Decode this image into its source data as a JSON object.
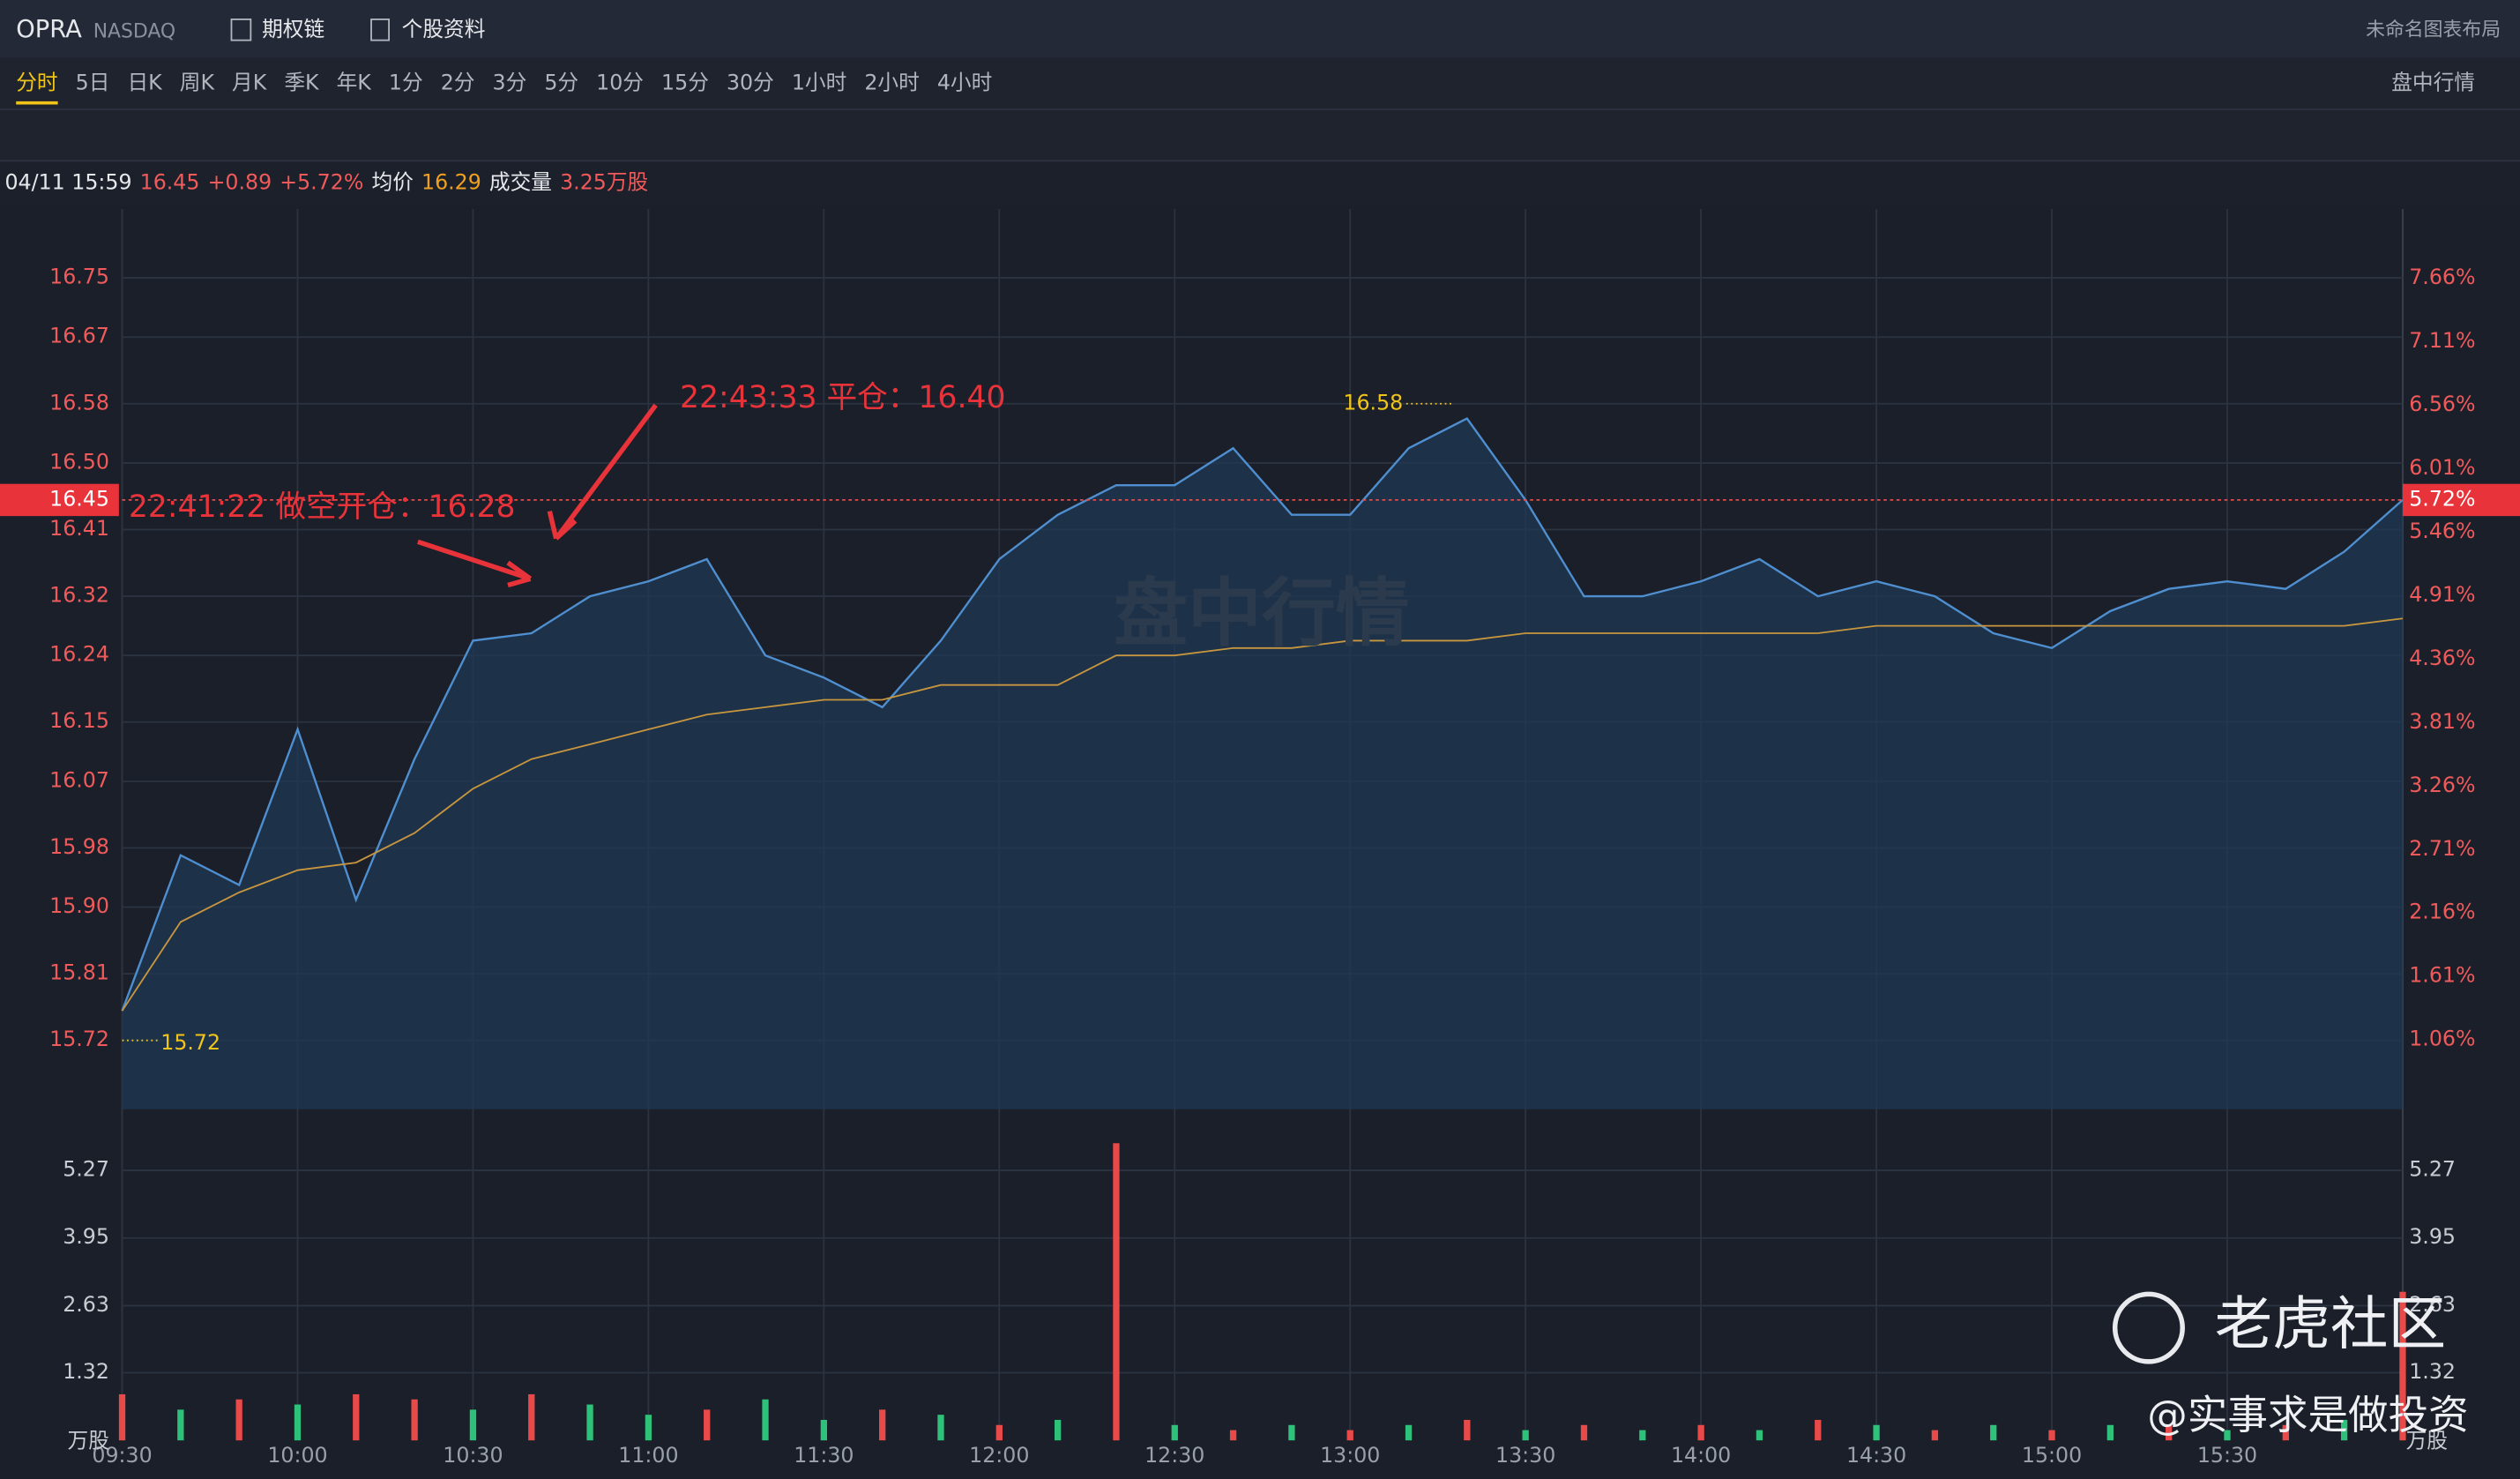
{
  "ui": {
    "symbol": "OPRA",
    "exchange": "NASDAQ",
    "option_chain": "期权链",
    "profile": "个股资料",
    "layout_name": "未命名图表布局",
    "periods": [
      "分时",
      "5日",
      "日K",
      "周K",
      "月K",
      "季K",
      "年K",
      "1分",
      "2分",
      "3分",
      "5分",
      "10分",
      "15分",
      "30分",
      "1小时",
      "2小时",
      "4小时"
    ],
    "market_menu": "盘中行情",
    "watermark": "盘中行情",
    "brand": "老虎社区",
    "author": "@实事求是做投资"
  },
  "quote": {
    "time": "04/11 15:59",
    "price": 16.45,
    "change": "+0.89",
    "change_pct": "+5.72%",
    "avg_label": "均价",
    "avg": 16.29,
    "volume_label": "成交量",
    "volume": "3.25万股",
    "tag_pct": "5.72%"
  },
  "chart_data": {
    "type": "line",
    "x": [
      "09:30",
      "09:40",
      "09:50",
      "10:00",
      "10:10",
      "10:20",
      "10:30",
      "10:40",
      "10:50",
      "11:00",
      "11:10",
      "11:20",
      "11:30",
      "11:40",
      "11:50",
      "12:00",
      "12:10",
      "12:20",
      "12:30",
      "12:40",
      "12:50",
      "13:00",
      "13:10",
      "13:20",
      "13:30",
      "13:40",
      "13:50",
      "14:00",
      "14:10",
      "14:20",
      "14:30",
      "14:40",
      "14:50",
      "15:00",
      "15:10",
      "15:20",
      "15:30",
      "15:40",
      "15:50",
      "16:00"
    ],
    "xticks": [
      "09:30",
      "10:00",
      "10:30",
      "11:00",
      "11:30",
      "12:00",
      "12:30",
      "13:00",
      "13:30",
      "14:00",
      "14:30",
      "15:00",
      "15:30"
    ],
    "series": [
      {
        "color": "#4f8fd0",
        "values": [
          15.76,
          15.97,
          15.93,
          16.14,
          15.91,
          16.1,
          16.26,
          16.27,
          16.32,
          16.34,
          16.37,
          16.24,
          16.21,
          16.17,
          16.26,
          16.37,
          16.43,
          16.47,
          16.47,
          16.52,
          16.43,
          16.43,
          16.52,
          16.56,
          16.45,
          16.32,
          16.32,
          16.34,
          16.37,
          16.32,
          16.34,
          16.32,
          16.27,
          16.25,
          16.3,
          16.33,
          16.34,
          16.33,
          16.38,
          16.45
        ]
      },
      {
        "name": "均价",
        "color": "#c8963e",
        "values": [
          15.76,
          15.88,
          15.92,
          15.95,
          15.96,
          16.0,
          16.06,
          16.1,
          16.12,
          16.14,
          16.16,
          16.17,
          16.18,
          16.18,
          16.2,
          16.2,
          16.2,
          16.24,
          16.24,
          16.25,
          16.25,
          16.26,
          16.26,
          16.26,
          16.27,
          16.27,
          16.27,
          16.27,
          16.27,
          16.27,
          16.28,
          16.28,
          16.28,
          16.28,
          16.28,
          16.28,
          16.28,
          16.28,
          16.28,
          16.29
        ]
      }
    ],
    "ylim": [
      15.627,
      16.843
    ],
    "yticks": [
      15.72,
      15.81,
      {
        "value": 15.9,
        "label": "15.90"
      },
      15.98,
      16.07,
      16.15,
      16.24,
      16.32,
      16.41,
      {
        "value": 16.5,
        "label": "16.50"
      },
      16.58,
      16.67,
      16.75
    ],
    "y2lim": [
      0.46,
      8.26
    ],
    "y2ticks": [
      {
        "value": 1.06,
        "label": "1.06%"
      },
      {
        "value": 1.61,
        "label": "1.61%"
      },
      {
        "value": 2.16,
        "label": "2.16%"
      },
      {
        "value": 2.71,
        "label": "2.71%"
      },
      {
        "value": 3.26,
        "label": "3.26%"
      },
      {
        "value": 3.81,
        "label": "3.81%"
      },
      {
        "value": 4.36,
        "label": "4.36%"
      },
      {
        "value": 4.91,
        "label": "4.91%"
      },
      {
        "value": 5.46,
        "label": "5.46%"
      },
      {
        "value": 6.01,
        "label": "6.01%"
      },
      {
        "value": 6.56,
        "label": "6.56%"
      },
      {
        "value": 7.11,
        "label": "7.11%"
      },
      {
        "value": 7.66,
        "label": "7.66%"
      }
    ],
    "high": 16.58,
    "low": 15.72,
    "annotations": [
      "22:41:22 做空开仓：16.28",
      "22:43:33 平仓：16.40"
    ],
    "volume": {
      "unit": "万股",
      "ylim": [
        0,
        6.15
      ],
      "yticks": [
        1.32,
        2.63,
        3.95,
        5.27
      ],
      "values": [
        0.9,
        0.6,
        0.8,
        0.7,
        0.9,
        0.8,
        0.6,
        0.9,
        0.7,
        0.5,
        0.6,
        0.8,
        0.4,
        0.6,
        0.5,
        0.3,
        0.4,
        5.8,
        0.3,
        0.2,
        0.3,
        0.2,
        0.3,
        0.4,
        0.2,
        0.3,
        0.2,
        0.3,
        0.2,
        0.4,
        0.3,
        0.2,
        0.3,
        0.2,
        0.3,
        0.3,
        0.2,
        0.3,
        0.4,
        2.9
      ],
      "colors": [
        "#e84a4a",
        "#2ec17a",
        "#e84a4a",
        "#2ec17a",
        "#e84a4a",
        "#e84a4a",
        "#2ec17a",
        "#e84a4a",
        "#2ec17a",
        "#2ec17a",
        "#e84a4a",
        "#2ec17a",
        "#2ec17a",
        "#e84a4a",
        "#2ec17a",
        "#e84a4a",
        "#2ec17a",
        "#e84a4a",
        "#2ec17a",
        "#e84a4a",
        "#2ec17a",
        "#e84a4a",
        "#2ec17a",
        "#e84a4a",
        "#2ec17a",
        "#e84a4a",
        "#2ec17a",
        "#e84a4a",
        "#2ec17a",
        "#e84a4a",
        "#2ec17a",
        "#e84a4a",
        "#2ec17a",
        "#e84a4a",
        "#2ec17a",
        "#e84a4a",
        "#2ec17a",
        "#e84a4a",
        "#2ec17a",
        "#e84a4a"
      ]
    }
  }
}
